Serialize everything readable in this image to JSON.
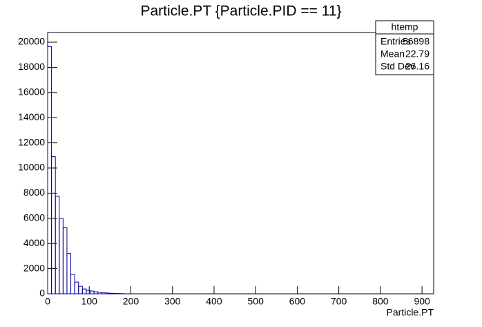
{
  "chart_data": {
    "type": "histogram",
    "title": "Particle.PT {Particle.PID == 11}",
    "x_label": "Particle.PT",
    "color": "#000099",
    "bins": [
      0,
      9.28,
      18.56,
      27.84,
      37.12,
      46.4,
      55.68,
      64.96,
      74.24,
      83.52,
      92.8,
      102.08,
      111.36,
      120.64,
      129.92,
      139.2,
      148.48,
      157.76,
      167.04,
      176.32,
      185.6
    ],
    "values": [
      19650,
      10900,
      7750,
      6000,
      5250,
      3200,
      1550,
      930,
      600,
      380,
      270,
      220,
      160,
      110,
      80,
      60,
      40,
      30,
      20,
      10
    ],
    "xlim": [
      0,
      928
    ],
    "ylim": [
      0,
      20770
    ],
    "xticks": [
      0,
      100,
      200,
      300,
      400,
      500,
      600,
      700,
      800,
      900
    ],
    "yticks": [
      0,
      2000,
      4000,
      6000,
      8000,
      10000,
      12000,
      14000,
      16000,
      18000,
      20000
    ],
    "stats": {
      "title": "htemp",
      "rows": [
        {
          "label": "Entries",
          "value": 56898
        },
        {
          "label": "Mean",
          "value": 22.79
        },
        {
          "label": "Std Dev",
          "value": 26.16
        }
      ]
    }
  }
}
